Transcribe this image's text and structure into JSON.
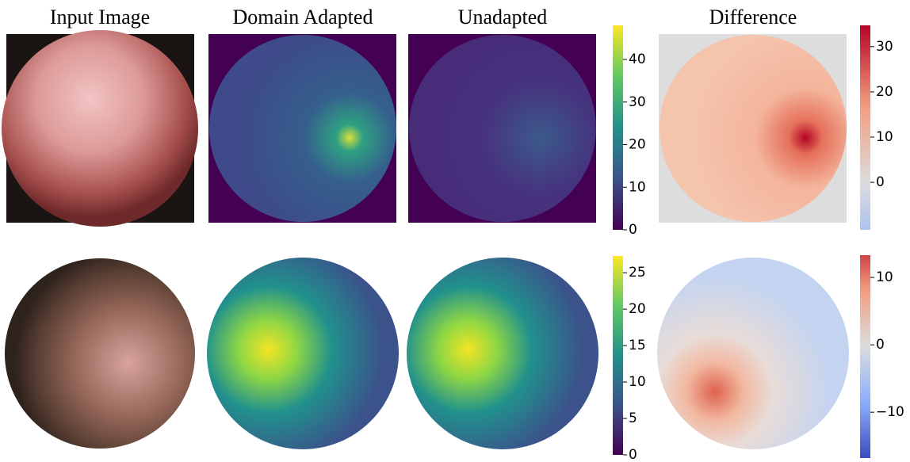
{
  "columns": [
    "Input Image",
    "Domain Adapted",
    "Unadapted",
    "Difference"
  ],
  "colorbars": [
    {
      "colormap": "viridis",
      "range": [
        0,
        48
      ],
      "ticks": [
        0,
        10,
        20,
        30,
        40
      ]
    },
    {
      "colormap": "coolwarm",
      "range": [
        -10.5,
        34.7
      ],
      "ticks": [
        0,
        10,
        20,
        30
      ]
    },
    {
      "colormap": "viridis",
      "range": [
        0,
        27.3
      ],
      "ticks": [
        0,
        5,
        10,
        15,
        20,
        25
      ]
    },
    {
      "colormap": "coolwarm",
      "range": [
        -16.8,
        13.3
      ],
      "ticks": [
        {
          "value": -10,
          "label": "−10"
        },
        0,
        10
      ]
    }
  ]
}
